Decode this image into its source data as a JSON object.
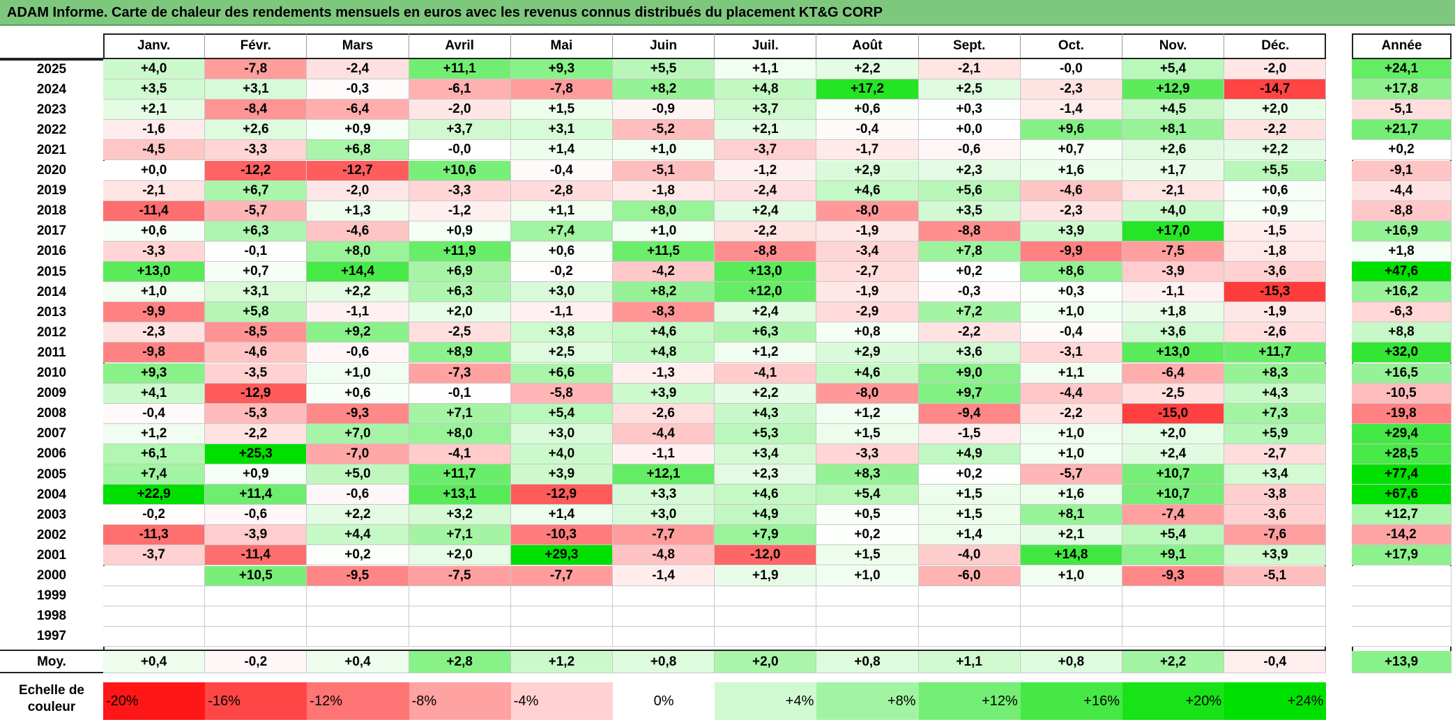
{
  "title": "ADAM Informe. Carte de chaleur des rendements mensuels en euros avec les revenus connus distribués du placement KT&G CORP",
  "chart_data": {
    "type": "heatmap",
    "title": "ADAM Informe. Carte de chaleur des rendements mensuels en euros avec les revenus connus distribués du placement KT&G CORP",
    "columns": [
      "Janv.",
      "Févr.",
      "Mars",
      "Avril",
      "Mai",
      "Juin",
      "Juil.",
      "Août",
      "Sept.",
      "Oct.",
      "Nov.",
      "Déc."
    ],
    "year_column": "Année",
    "rows": [
      {
        "label": "2025",
        "values": [
          "+4,0",
          "-7,8",
          "-2,4",
          "+11,1",
          "+9,3",
          "+5,5",
          "+1,1",
          "+2,2",
          "-2,1",
          "-0,0",
          "+5,4",
          "-2,0"
        ],
        "year": "+24,1"
      },
      {
        "label": "2024",
        "values": [
          "+3,5",
          "+3,1",
          "-0,3",
          "-6,1",
          "-7,8",
          "+8,2",
          "+4,8",
          "+17,2",
          "+2,5",
          "-2,3",
          "+12,9",
          "-14,7"
        ],
        "year": "+17,8"
      },
      {
        "label": "2023",
        "values": [
          "+2,1",
          "-8,4",
          "-6,4",
          "-2,0",
          "+1,5",
          "-0,9",
          "+3,7",
          "+0,6",
          "+0,3",
          "-1,4",
          "+4,5",
          "+2,0"
        ],
        "year": "-5,1"
      },
      {
        "label": "2022",
        "values": [
          "-1,6",
          "+2,6",
          "+0,9",
          "+3,7",
          "+3,1",
          "-5,2",
          "+2,1",
          "-0,4",
          "+0,0",
          "+9,6",
          "+8,1",
          "-2,2"
        ],
        "year": "+21,7"
      },
      {
        "label": "2021",
        "values": [
          "-4,5",
          "-3,3",
          "+6,8",
          "-0,0",
          "+1,4",
          "+1,0",
          "-3,7",
          "-1,7",
          "-0,6",
          "+0,7",
          "+2,6",
          "+2,2"
        ],
        "year": "+0,2"
      },
      {
        "label": "2020",
        "values": [
          "+0,0",
          "-12,2",
          "-12,7",
          "+10,6",
          "-0,4",
          "-5,1",
          "-1,2",
          "+2,9",
          "+2,3",
          "+1,6",
          "+1,7",
          "+5,5"
        ],
        "year": "-9,1"
      },
      {
        "label": "2019",
        "values": [
          "-2,1",
          "+6,7",
          "-2,0",
          "-3,3",
          "-2,8",
          "-1,8",
          "-2,4",
          "+4,6",
          "+5,6",
          "-4,6",
          "-2,1",
          "+0,6"
        ],
        "year": "-4,4"
      },
      {
        "label": "2018",
        "values": [
          "-11,4",
          "-5,7",
          "+1,3",
          "-1,2",
          "+1,1",
          "+8,0",
          "+2,4",
          "-8,0",
          "+3,5",
          "-2,3",
          "+4,0",
          "+0,9"
        ],
        "year": "-8,8"
      },
      {
        "label": "2017",
        "values": [
          "+0,6",
          "+6,3",
          "-4,6",
          "+0,9",
          "+7,4",
          "+1,0",
          "-2,2",
          "-1,9",
          "-8,8",
          "+3,9",
          "+17,0",
          "-1,5"
        ],
        "year": "+16,9"
      },
      {
        "label": "2016",
        "values": [
          "-3,3",
          "-0,1",
          "+8,0",
          "+11,9",
          "+0,6",
          "+11,5",
          "-8,8",
          "-3,4",
          "+7,8",
          "-9,9",
          "-7,5",
          "-1,8"
        ],
        "year": "+1,8"
      },
      {
        "label": "2015",
        "values": [
          "+13,0",
          "+0,7",
          "+14,4",
          "+6,9",
          "-0,2",
          "-4,2",
          "+13,0",
          "-2,7",
          "+0,2",
          "+8,6",
          "-3,9",
          "-3,6"
        ],
        "year": "+47,6"
      },
      {
        "label": "2014",
        "values": [
          "+1,0",
          "+3,1",
          "+2,2",
          "+6,3",
          "+3,0",
          "+8,2",
          "+12,0",
          "-1,9",
          "-0,3",
          "+0,3",
          "-1,1",
          "-15,3"
        ],
        "year": "+16,2"
      },
      {
        "label": "2013",
        "values": [
          "-9,9",
          "+5,8",
          "-1,1",
          "+2,0",
          "-1,1",
          "-8,3",
          "+2,4",
          "-2,9",
          "+7,2",
          "+1,0",
          "+1,8",
          "-1,9"
        ],
        "year": "-6,3"
      },
      {
        "label": "2012",
        "values": [
          "-2,3",
          "-8,5",
          "+9,2",
          "-2,5",
          "+3,8",
          "+4,6",
          "+6,3",
          "+0,8",
          "-2,2",
          "-0,4",
          "+3,6",
          "-2,6"
        ],
        "year": "+8,8"
      },
      {
        "label": "2011",
        "values": [
          "-9,8",
          "-4,6",
          "-0,6",
          "+8,9",
          "+2,5",
          "+4,8",
          "+1,2",
          "+2,9",
          "+3,6",
          "-3,1",
          "+13,0",
          "+11,7"
        ],
        "year": "+32,0"
      },
      {
        "label": "2010",
        "values": [
          "+9,3",
          "-3,5",
          "+1,0",
          "-7,3",
          "+6,6",
          "-1,3",
          "-4,1",
          "+4,6",
          "+9,0",
          "+1,1",
          "-6,4",
          "+8,3"
        ],
        "year": "+16,5"
      },
      {
        "label": "2009",
        "values": [
          "+4,1",
          "-12,9",
          "+0,6",
          "-0,1",
          "-5,8",
          "+3,9",
          "+2,2",
          "-8,0",
          "+9,7",
          "-4,4",
          "-2,5",
          "+4,3"
        ],
        "year": "-10,5"
      },
      {
        "label": "2008",
        "values": [
          "-0,4",
          "-5,3",
          "-9,3",
          "+7,1",
          "+5,4",
          "-2,6",
          "+4,3",
          "+1,2",
          "-9,4",
          "-2,2",
          "-15,0",
          "+7,3"
        ],
        "year": "-19,8"
      },
      {
        "label": "2007",
        "values": [
          "+1,2",
          "-2,2",
          "+7,0",
          "+8,0",
          "+3,0",
          "-4,4",
          "+5,3",
          "+1,5",
          "-1,5",
          "+1,0",
          "+2,0",
          "+5,9"
        ],
        "year": "+29,4"
      },
      {
        "label": "2006",
        "values": [
          "+6,1",
          "+25,3",
          "-7,0",
          "-4,1",
          "+4,0",
          "-1,1",
          "+3,4",
          "-3,3",
          "+4,9",
          "+1,0",
          "+2,4",
          "-2,7"
        ],
        "year": "+28,5"
      },
      {
        "label": "2005",
        "values": [
          "+7,4",
          "+0,9",
          "+5,0",
          "+11,7",
          "+3,9",
          "+12,1",
          "+2,3",
          "+8,3",
          "+0,2",
          "-5,7",
          "+10,7",
          "+3,4"
        ],
        "year": "+77,4"
      },
      {
        "label": "2004",
        "values": [
          "+22,9",
          "+11,4",
          "-0,6",
          "+13,1",
          "-12,9",
          "+3,3",
          "+4,6",
          "+5,4",
          "+1,5",
          "+1,6",
          "+10,7",
          "-3,8"
        ],
        "year": "+67,6"
      },
      {
        "label": "2003",
        "values": [
          "-0,2",
          "-0,6",
          "+2,2",
          "+3,2",
          "+1,4",
          "+3,0",
          "+4,9",
          "+0,5",
          "+1,5",
          "+8,1",
          "-7,4",
          "-3,6"
        ],
        "year": "+12,7"
      },
      {
        "label": "2002",
        "values": [
          "-11,3",
          "-3,9",
          "+4,4",
          "+7,1",
          "-10,3",
          "-7,7",
          "+7,9",
          "+0,2",
          "+1,4",
          "+2,1",
          "+5,4",
          "-7,6"
        ],
        "year": "-14,2"
      },
      {
        "label": "2001",
        "values": [
          "-3,7",
          "-11,4",
          "+0,2",
          "+2,0",
          "+29,3",
          "-4,8",
          "-12,0",
          "+1,5",
          "-4,0",
          "+14,8",
          "+9,1",
          "+3,9"
        ],
        "year": "+17,9"
      },
      {
        "label": "2000",
        "values": [
          "",
          "+10,5",
          "-9,5",
          "-7,5",
          "-7,7",
          "-1,4",
          "+1,9",
          "+1,0",
          "-6,0",
          "+1,0",
          "-9,3",
          "-5,1"
        ],
        "year": ""
      },
      {
        "label": "1999",
        "values": [
          "",
          "",
          "",
          "",
          "",
          "",
          "",
          "",
          "",
          "",
          "",
          ""
        ],
        "year": ""
      },
      {
        "label": "1998",
        "values": [
          "",
          "",
          "",
          "",
          "",
          "",
          "",
          "",
          "",
          "",
          "",
          ""
        ],
        "year": ""
      },
      {
        "label": "1997",
        "values": [
          "",
          "",
          "",
          "",
          "",
          "",
          "",
          "",
          "",
          "",
          "",
          ""
        ],
        "year": ""
      }
    ],
    "average": {
      "label": "Moy.",
      "values": [
        "+0,4",
        "-0,2",
        "+0,4",
        "+2,8",
        "+1,2",
        "+0,8",
        "+2,0",
        "+0,8",
        "+1,1",
        "+0,8",
        "+2,2",
        "-0,4"
      ],
      "year": "+13,9"
    },
    "scale": {
      "label_line1": "Echelle de",
      "label_line2": "couleur",
      "steps": [
        "-20%",
        "-16%",
        "-12%",
        "-8%",
        "-4%",
        "0%",
        "+4%",
        "+8%",
        "+12%",
        "+16%",
        "+20%",
        "+24%"
      ],
      "step_values": [
        -20,
        -16,
        -12,
        -8,
        -4,
        0,
        4,
        8,
        12,
        16,
        20,
        24
      ]
    },
    "colors": {
      "negative_max": "#ff0000",
      "neutral": "#ffffff",
      "positive_max": "#00e000",
      "title_bg": "#7ec87e"
    }
  }
}
